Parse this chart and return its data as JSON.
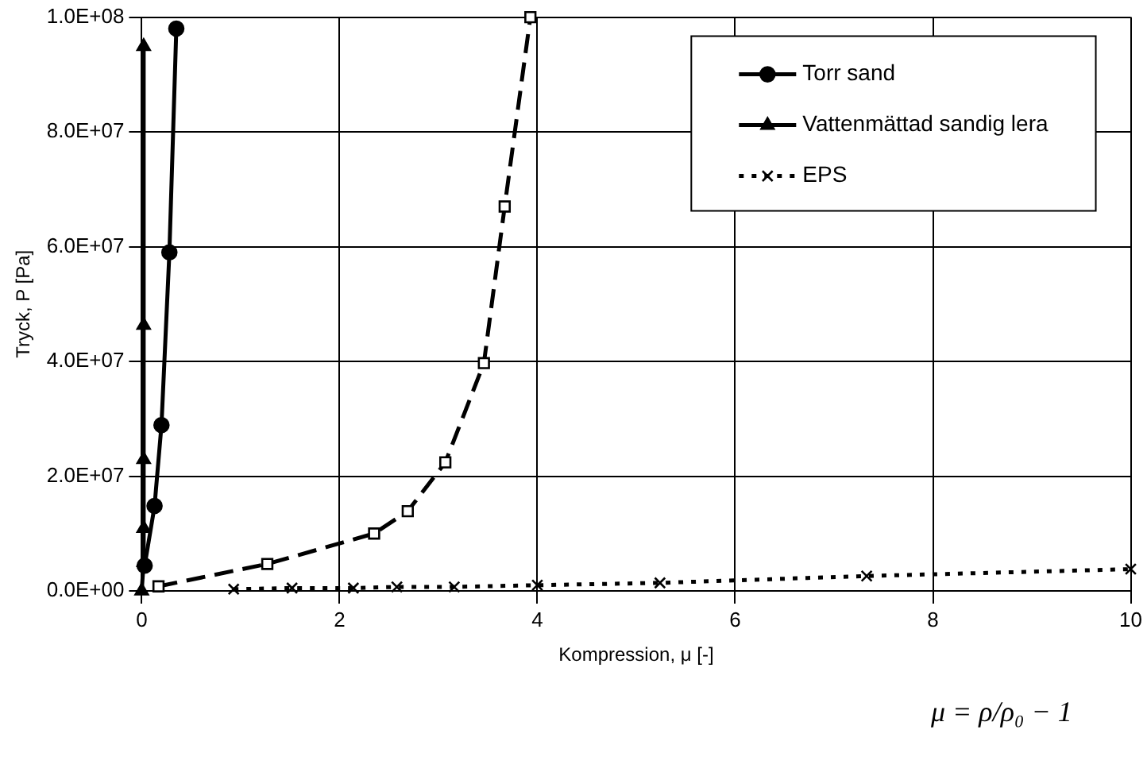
{
  "chart_data": {
    "type": "line",
    "xlabel": "Kompression, μ [-]",
    "ylabel": "Tryck, P [Pa]",
    "annotations": [
      "μ = ρ/ρ₀ − 1"
    ],
    "xlim": [
      0,
      10
    ],
    "xticks": [
      0,
      2,
      4,
      6,
      8,
      10
    ],
    "ylim": [
      0,
      100000000
    ],
    "yticks": [
      {
        "value": 0,
        "label": "0.0E+00"
      },
      {
        "value": 20000000,
        "label": "2.0E+07"
      },
      {
        "value": 40000000,
        "label": "4.0E+07"
      },
      {
        "value": 60000000,
        "label": "6.0E+07"
      },
      {
        "value": 80000000,
        "label": "8.0E+07"
      },
      {
        "value": 100000000,
        "label": "1.0E+08"
      }
    ],
    "grid": true,
    "legend": "top right",
    "series": [
      {
        "name": "Torr sand",
        "color": "#000000",
        "marker": "circle",
        "line_style": "solid",
        "x": [
          0.03,
          0.13,
          0.2,
          0.28,
          0.35
        ],
        "values": [
          4400000,
          14800000,
          28900000,
          59000000,
          98000000
        ]
      },
      {
        "name": "Vattenmättad sandig lera",
        "color": "#000000",
        "marker": "triangle",
        "line_style": "solid",
        "x": [
          0,
          0.02,
          0.02,
          0.02,
          0.02,
          0.02
        ],
        "values": [
          0,
          5000000,
          10900000,
          22900000,
          46300000,
          94900000
        ]
      },
      {
        "name": "EPS",
        "color": "#000000",
        "marker": "cross",
        "line_style": "dotted",
        "x": [
          0.93,
          1.52,
          2.14,
          2.58,
          3.16,
          4.0,
          5.24,
          7.33,
          10.0
        ],
        "values": [
          300000,
          500000,
          500000,
          700000,
          700000,
          1000000,
          1400000,
          2600000,
          3800000
        ]
      },
      {
        "color": "#000000",
        "marker": "square",
        "line_style": "dashed",
        "x": [
          0.17,
          1.27,
          2.35,
          2.69,
          3.07,
          3.46,
          3.67,
          3.93
        ],
        "values": [
          800000,
          4700000,
          10000000,
          13900000,
          22400000,
          39700000,
          67000000,
          100000000
        ]
      }
    ]
  }
}
